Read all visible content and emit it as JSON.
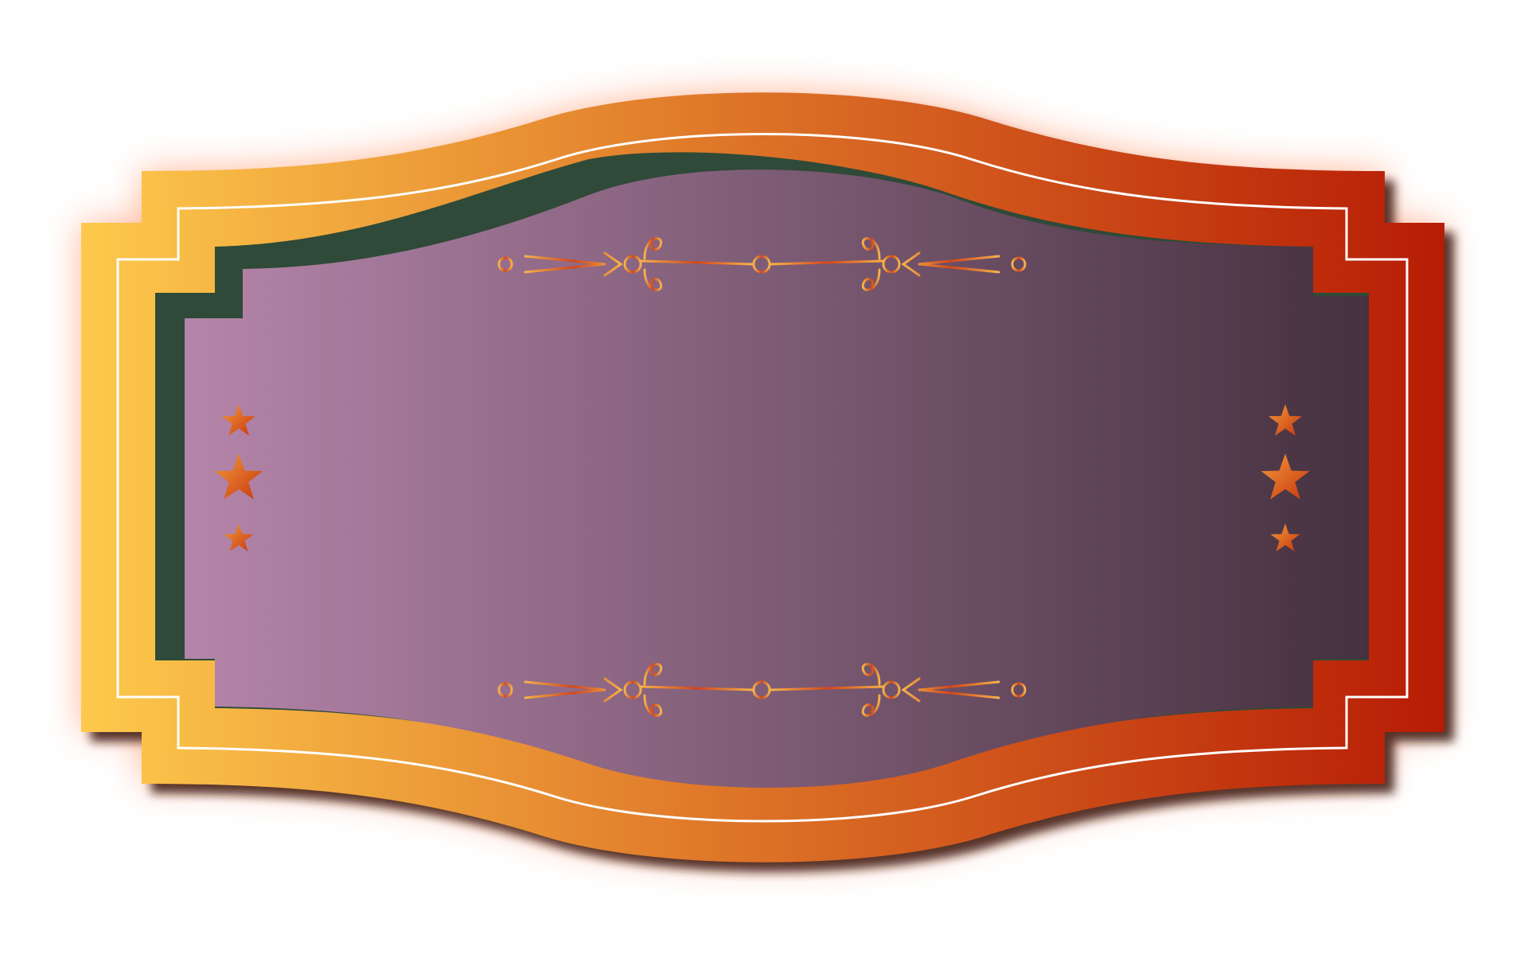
{
  "colors": {
    "frame_left": "#FDC94C",
    "frame_mid": "#E07A2A",
    "frame_right": "#B71C05",
    "panel_left": "#B585AA",
    "panel_right": "#45313F",
    "shadow_panel": "#2F4A38",
    "trim": "#FFFFFF",
    "glow": "#FF7B45",
    "drop_shadow": "#3A1408"
  },
  "ornaments": {
    "top_divider": "flourish-divider",
    "bottom_divider": "flourish-divider",
    "left_stars": [
      "star",
      "star",
      "star"
    ],
    "right_stars": [
      "star",
      "star",
      "star"
    ]
  }
}
